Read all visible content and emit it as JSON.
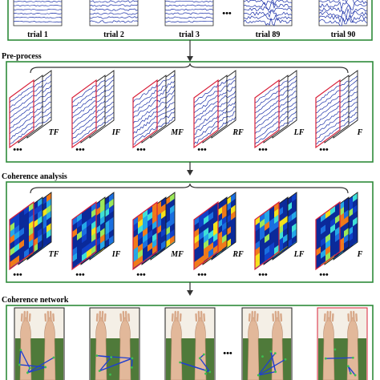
{
  "trials": {
    "labels": [
      "trial 1",
      "trial 2",
      "trial 3",
      "trial 89",
      "trial 90"
    ],
    "ellipsis": "•••"
  },
  "preprocess": {
    "title": "Pre-process",
    "conditions": [
      "TF",
      "IF",
      "MF",
      "RF",
      "LF",
      "F"
    ],
    "ellipsis": "•••"
  },
  "coherence": {
    "title": "Coherence analysis",
    "conditions": [
      "TF",
      "IF",
      "MF",
      "RF",
      "LF",
      "F"
    ],
    "ellipsis": "•••"
  },
  "network": {
    "title": "Coherence network",
    "ellipsis": "•••"
  },
  "colors": {
    "frame": "#2e8b3a",
    "signal": "#1a2fa8",
    "highlight": "#d8203a",
    "arrow": "#333333"
  }
}
